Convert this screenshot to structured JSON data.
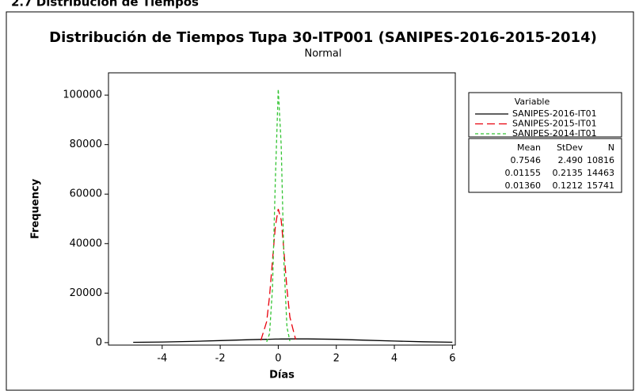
{
  "header": {
    "title": "2.7 Distribución de Tiempos"
  },
  "chart_data": {
    "type": "line",
    "title": "Distribución de Tiempos Tupa 30-ITP001 (SANIPES-2016-2015-2014)",
    "subtitle": "Normal",
    "x_label": "Días",
    "y_label": "Frequency",
    "x": [
      -5,
      -4,
      -3,
      -2,
      -1,
      -0.6,
      -0.4,
      -0.3,
      -0.2,
      -0.1,
      0,
      0.1,
      0.2,
      0.3,
      0.4,
      0.6,
      1,
      2,
      3,
      4,
      5,
      6
    ],
    "series": [
      {
        "name": "SANIPES-2016-IT01",
        "color": "#000000",
        "dash": "none",
        "values": [
          104,
          243,
          483,
          815,
          1172,
          1295,
          1348,
          1373,
          1395,
          1415,
          1433,
          1450,
          1464,
          1476,
          1485,
          1497,
          1492,
          1323,
          998,
          640,
          350,
          163
        ]
      },
      {
        "name": "SANIPES-2015-IT01",
        "color": "#e8000b",
        "dash": "10,5",
        "values": [
          null,
          null,
          null,
          null,
          null,
          900,
          8500,
          18700,
          33100,
          47100,
          54000,
          49600,
          36600,
          21700,
          10300,
          1200,
          null,
          null,
          null,
          null,
          null,
          null
        ]
      },
      {
        "name": "SANIPES-2014-IT01",
        "color": "#33c433",
        "dash": "4,3",
        "values": [
          null,
          null,
          null,
          null,
          null,
          null,
          300,
          3600,
          21800,
          66300,
          102400,
          79900,
          31500,
          6300,
          600,
          null,
          null,
          null,
          null,
          null,
          null,
          null
        ]
      }
    ],
    "xlim": [
      -5.85,
      6.1
    ],
    "ylim": [
      -1000,
      109000
    ],
    "xticks": [
      -4,
      -2,
      0,
      2,
      4,
      6
    ],
    "yticks": [
      0,
      20000,
      40000,
      60000,
      80000,
      100000
    ],
    "legend_title": "Variable",
    "stats": {
      "headers": [
        "Mean",
        "StDev",
        "N"
      ],
      "rows": [
        [
          "0.7546",
          "2.490",
          "10816"
        ],
        [
          "0.01155",
          "0.2135",
          "14463"
        ],
        [
          "0.01360",
          "0.1212",
          "15741"
        ]
      ]
    }
  }
}
